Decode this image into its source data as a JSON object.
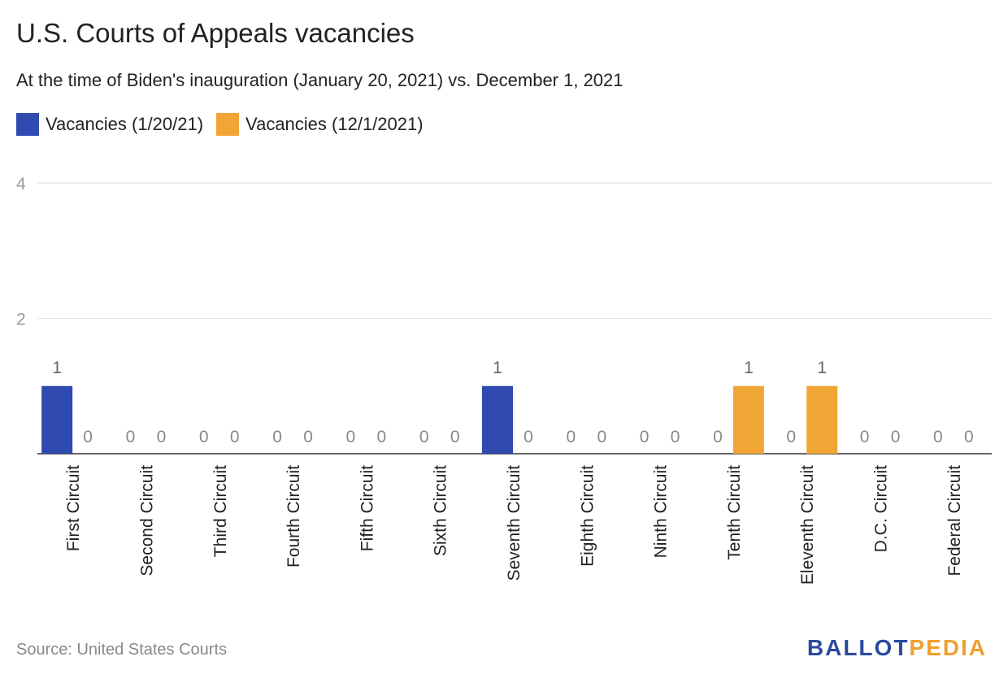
{
  "header": {
    "title": "U.S. Courts of Appeals vacancies",
    "subtitle": "At the time of Biden's inauguration (January 20, 2021) vs. December 1, 2021"
  },
  "colors": {
    "series1": "#2f4ab0",
    "series2": "#f0a535"
  },
  "chart_data": {
    "type": "bar",
    "title": "U.S. Courts of Appeals vacancies",
    "subtitle": "At the time of Biden's inauguration (January 20, 2021) vs. December 1, 2021",
    "categories": [
      "First Circuit",
      "Second Circuit",
      "Third Circuit",
      "Fourth Circuit",
      "Fifth Circuit",
      "Sixth Circuit",
      "Seventh Circuit",
      "Eighth Circuit",
      "Ninth Circuit",
      "Tenth Circuit",
      "Eleventh Circuit",
      "D.C. Circuit",
      "Federal Circuit"
    ],
    "series": [
      {
        "name": "Vacancies (1/20/21)",
        "values": [
          1,
          0,
          0,
          0,
          0,
          0,
          1,
          0,
          0,
          0,
          0,
          0,
          0
        ]
      },
      {
        "name": "Vacancies (12/1/2021)",
        "values": [
          0,
          0,
          0,
          0,
          0,
          0,
          0,
          0,
          0,
          1,
          1,
          0,
          0
        ]
      }
    ],
    "ylim": [
      0,
      4
    ],
    "yticks": [
      2,
      4
    ],
    "xlabel": "",
    "ylabel": "",
    "grid": true,
    "legend": "top-left"
  },
  "footer": {
    "source": "Source: United States Courts",
    "logo_part1": "BALLOT",
    "logo_part2": "PEDIA"
  }
}
